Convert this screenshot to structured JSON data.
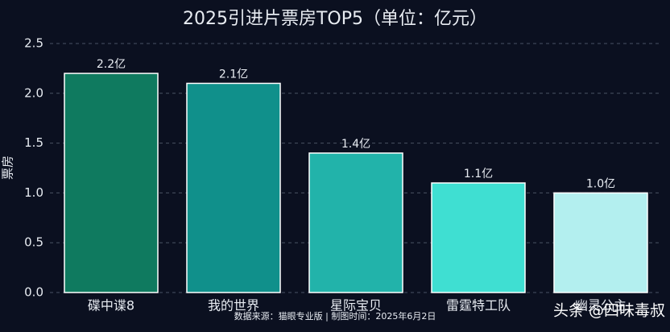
{
  "chart_data": {
    "type": "bar",
    "title": "2025引进片票房TOP5（单位：亿元）",
    "y_label": "票房",
    "categories": [
      "碟中谍8",
      "我的世界",
      "星际宝贝",
      "雷霆特工队",
      "幽灵公主"
    ],
    "values": [
      2.2,
      2.1,
      1.4,
      1.1,
      1.0
    ],
    "value_labels": [
      "2.2亿",
      "2.1亿",
      "1.4亿",
      "1.1亿",
      "1.0亿"
    ],
    "colors": [
      "#0f7a5f",
      "#10908b",
      "#22b3aa",
      "#3fdfd2",
      "#b3efef"
    ],
    "ylim": [
      0,
      2.5
    ],
    "yticks": [
      {
        "value": 0,
        "label": "0.0"
      },
      0.5,
      {
        "value": 1,
        "label": "1.0"
      },
      1.5,
      {
        "value": 2,
        "label": "2.0"
      },
      2.5
    ],
    "grid": true,
    "source": "数据来源：猫眼专业版 | 制图时间：2025年6月2日",
    "watermark": "头条 @四味毒叔"
  }
}
